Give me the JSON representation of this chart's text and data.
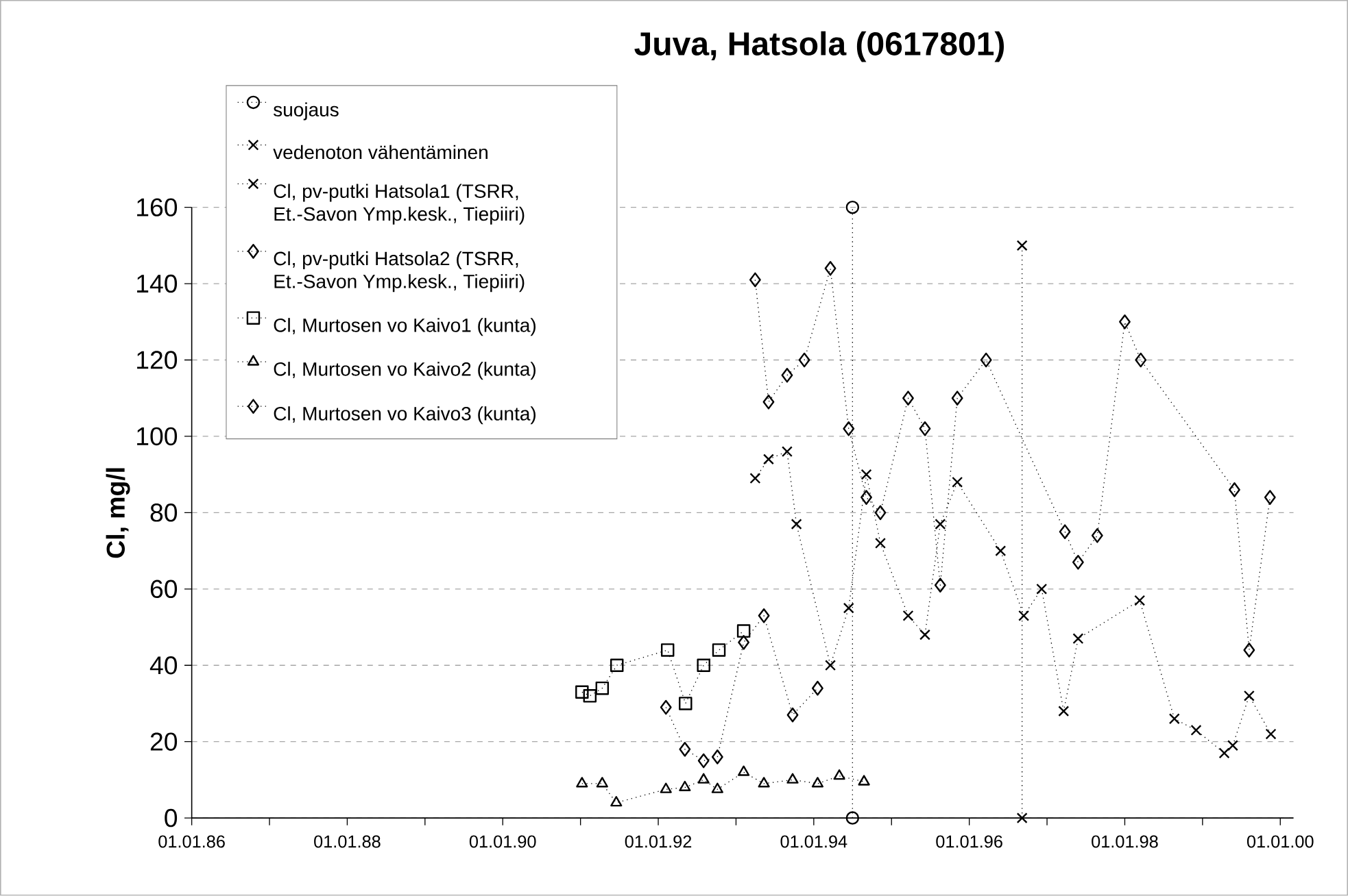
{
  "chart_data": {
    "type": "line",
    "title": "Juva, Hatsola (0617801)",
    "ylabel": "Cl, mg/l",
    "xlim": [
      "1986-01-01",
      "2000-03-03"
    ],
    "ylim": [
      0,
      160
    ],
    "xticks": [
      {
        "value": "1986-01-01",
        "label": "01.01.86"
      },
      {
        "value": "1987-01-01",
        "label": null
      },
      {
        "value": "1988-01-01",
        "label": "01.01.88"
      },
      {
        "value": "1989-01-01",
        "label": null
      },
      {
        "value": "1990-01-01",
        "label": "01.01.90"
      },
      {
        "value": "1991-01-01",
        "label": null
      },
      {
        "value": "1992-01-01",
        "label": "01.01.92"
      },
      {
        "value": "1993-01-01",
        "label": null
      },
      {
        "value": "1994-01-01",
        "label": "01.01.94"
      },
      {
        "value": "1995-01-01",
        "label": null
      },
      {
        "value": "1996-01-01",
        "label": "01.01.96"
      },
      {
        "value": "1997-01-01",
        "label": null
      },
      {
        "value": "1998-01-01",
        "label": "01.01.98"
      },
      {
        "value": "1999-01-01",
        "label": null
      },
      {
        "value": "2000-01-01",
        "label": "01.01.00"
      }
    ],
    "yticks": [
      0,
      20,
      40,
      60,
      80,
      100,
      120,
      140,
      160
    ],
    "grid": "y",
    "legend": "top left",
    "line_style": "dotted",
    "series": [
      {
        "name": "suojaus",
        "color": "#000000",
        "marker": "circle",
        "x": [
          "1994-07-02",
          "1994-07-02"
        ],
        "values": [
          0,
          160
        ]
      },
      {
        "name": "vedenoton vähentäminen",
        "color": "#000000",
        "marker": "cross",
        "x": [
          "1996-09-05",
          "1996-09-05"
        ],
        "values": [
          0,
          150
        ]
      },
      {
        "name": "Cl, pv-putki Hatsola1 (TSRR, Et.-Savon Ymp.kesk., Tiepiiri)",
        "color": "#000000",
        "marker": "cross",
        "x": [
          "1993-04-01",
          "1993-06-03",
          "1993-08-29",
          "1993-10-12",
          "1994-03-20",
          "1994-06-14",
          "1994-09-05",
          "1994-11-10",
          "1995-03-20",
          "1995-06-07",
          "1995-08-18",
          "1995-11-06",
          "1996-05-27",
          "1996-09-13",
          "1996-12-06",
          "1997-03-20",
          "1997-05-27",
          "1998-03-12",
          "1998-08-22",
          "1998-12-02",
          "1999-04-13",
          "1999-05-23",
          "1999-08-08",
          "1999-11-18"
        ],
        "values": [
          89,
          94,
          96,
          77,
          40,
          55,
          90,
          72,
          53,
          48,
          77,
          88,
          70,
          53,
          60,
          28,
          47,
          57,
          26,
          23,
          17,
          19,
          32,
          22
        ]
      },
      {
        "name": "Cl, pv-putki Hatsola2 (TSRR, Et.-Savon Ymp.kesk., Tiepiiri)",
        "color": "#000000",
        "marker": "diamond",
        "x": [
          "1993-04-01",
          "1993-06-03",
          "1993-08-29",
          "1993-11-18",
          "1994-03-20",
          "1994-06-14",
          "1994-09-05",
          "1994-11-10",
          "1995-03-20",
          "1995-06-07",
          "1995-08-18",
          "1995-11-06",
          "1996-03-20",
          "1997-03-26",
          "1997-05-27",
          "1997-08-25",
          "1998-01-01",
          "1998-03-17",
          "1999-05-31",
          "1999-08-08",
          "1999-11-14"
        ],
        "values": [
          141,
          109,
          116,
          120,
          144,
          102,
          84,
          80,
          110,
          102,
          61,
          110,
          120,
          75,
          67,
          74,
          130,
          120,
          86,
          44,
          84
        ]
      },
      {
        "name": "Cl, Murtosen vo Kaivo1 (kunta)",
        "color": "#000000",
        "marker": "square",
        "x": [
          "1991-01-08",
          "1991-02-14",
          "1991-04-13",
          "1991-06-21",
          "1992-02-14",
          "1992-05-08",
          "1992-08-01",
          "1992-10-12",
          "1993-02-06"
        ],
        "values": [
          33,
          32,
          34,
          40,
          44,
          30,
          40,
          44,
          49
        ]
      },
      {
        "name": "Cl, Murtosen vo Kaivo2 (kunta)",
        "color": "#000000",
        "marker": "triangle",
        "x": [
          "1991-01-08",
          "1991-04-13",
          "1991-06-18",
          "1992-02-06",
          "1992-05-05",
          "1992-08-01",
          "1992-10-05",
          "1993-02-06",
          "1993-05-12",
          "1993-09-24",
          "1994-01-19",
          "1994-05-01",
          "1994-08-25"
        ],
        "values": [
          9,
          9,
          4,
          7.5,
          8,
          10,
          7.5,
          12,
          9,
          10,
          9,
          11,
          9.5
        ]
      },
      {
        "name": "Cl, Murtosen vo Kaivo3 (kunta)",
        "color": "#000000",
        "marker": "diamond",
        "x": [
          "1992-02-06",
          "1992-05-05",
          "1992-08-01",
          "1992-10-05",
          "1993-02-06",
          "1993-05-12",
          "1993-09-24",
          "1994-01-19"
        ],
        "values": [
          29,
          18,
          15,
          16,
          46,
          53,
          27,
          34
        ]
      }
    ]
  }
}
